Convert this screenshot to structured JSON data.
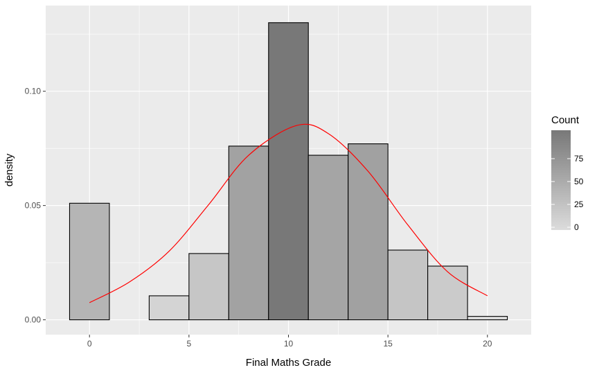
{
  "chart_data": {
    "type": "bar",
    "subtype": "histogram",
    "title": "",
    "xlabel": "Final Maths Grade",
    "ylabel": "density",
    "xlim": [
      -2.2,
      22.2
    ],
    "ylim": [
      -0.0065,
      0.1375
    ],
    "x_ticks": [
      0,
      5,
      10,
      15,
      20
    ],
    "x_tick_labels": [
      "0",
      "5",
      "10",
      "15",
      "20"
    ],
    "y_ticks": [
      0.0,
      0.05,
      0.1
    ],
    "y_tick_labels": [
      "0.00",
      "0.05",
      "0.10"
    ],
    "grid": true,
    "bins": [
      {
        "x0": -1,
        "x1": 1,
        "density": 0.051,
        "count": 40
      },
      {
        "x0": 1,
        "x1": 3,
        "density": 0.0,
        "count": 0
      },
      {
        "x0": 3,
        "x1": 5,
        "density": 0.0105,
        "count": 8
      },
      {
        "x0": 5,
        "x1": 7,
        "density": 0.029,
        "count": 23
      },
      {
        "x0": 7,
        "x1": 9,
        "density": 0.076,
        "count": 60
      },
      {
        "x0": 9,
        "x1": 11,
        "density": 0.13,
        "count": 103
      },
      {
        "x0": 11,
        "x1": 13,
        "density": 0.072,
        "count": 57
      },
      {
        "x0": 13,
        "x1": 15,
        "density": 0.077,
        "count": 61
      },
      {
        "x0": 15,
        "x1": 17,
        "density": 0.0305,
        "count": 24
      },
      {
        "x0": 17,
        "x1": 19,
        "density": 0.0235,
        "count": 18
      },
      {
        "x0": 19,
        "x1": 21,
        "density": 0.0015,
        "count": 1
      }
    ],
    "density_curve": {
      "color": "#ff0000",
      "x": [
        0,
        2,
        4,
        6,
        8,
        10.4,
        12,
        14,
        16,
        18,
        20
      ],
      "y": [
        0.0075,
        0.0165,
        0.03,
        0.0505,
        0.072,
        0.085,
        0.0815,
        0.065,
        0.0415,
        0.021,
        0.0105
      ]
    },
    "legend": {
      "title": "Count",
      "placement": "right",
      "breaks": [
        0,
        25,
        50,
        75
      ],
      "labels": [
        "0",
        "25",
        "50",
        "75"
      ],
      "range": [
        0,
        103
      ],
      "color_low": "#dcdcdc",
      "color_high": "#787878"
    },
    "colors": {
      "panel_bg": "#ebebeb",
      "grid": "#ffffff",
      "bar_outline": "#000000"
    }
  }
}
